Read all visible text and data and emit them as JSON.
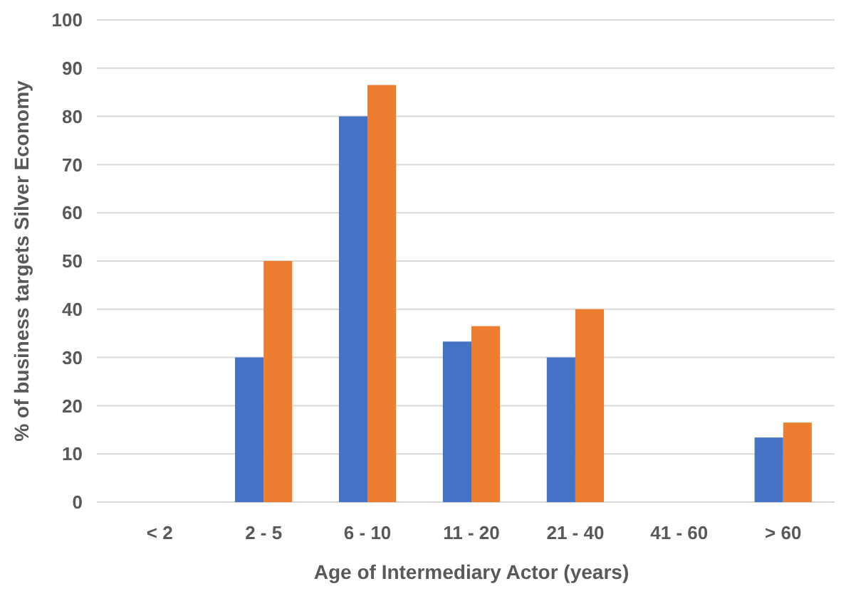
{
  "chart_data": {
    "type": "bar",
    "xlabel": "Age of Intermediary Actor (years)",
    "ylabel": "% of business targets Silver Economy",
    "categories": [
      "< 2",
      "2 - 5",
      "6 - 10",
      "11 - 20",
      "21 - 40",
      "41 - 60",
      "> 60"
    ],
    "series": [
      {
        "color": "#4472c4",
        "values": [
          0,
          30,
          80,
          33.3,
          30,
          0,
          13.4
        ]
      },
      {
        "color": "#ed7d31",
        "values": [
          0,
          50,
          86.5,
          36.5,
          40,
          0,
          16.5
        ]
      }
    ],
    "ylim": [
      0,
      100
    ],
    "yticks": [
      0,
      10,
      20,
      30,
      40,
      50,
      60,
      70,
      80,
      90,
      100
    ],
    "grid": "y"
  }
}
